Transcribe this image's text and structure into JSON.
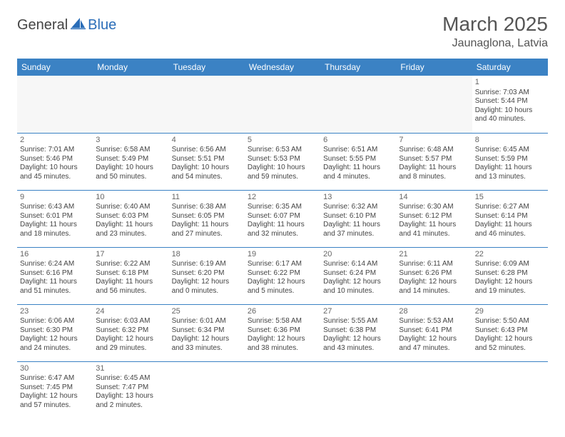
{
  "logo": {
    "general": "General",
    "blue": "Blue"
  },
  "title": "March 2025",
  "location": "Jaunaglona, Latvia",
  "colors": {
    "header_bg": "#3b82c4",
    "header_text": "#ffffff",
    "border": "#3b82c4",
    "empty_bg": "#f7f7f7",
    "text": "#444444",
    "logo_blue": "#2a6db8"
  },
  "typography": {
    "title_fontsize": 28,
    "location_fontsize": 16,
    "dayhead_fontsize": 12,
    "cell_fontsize": 10
  },
  "dayHeaders": [
    "Sunday",
    "Monday",
    "Tuesday",
    "Wednesday",
    "Thursday",
    "Friday",
    "Saturday"
  ],
  "weeks": [
    [
      null,
      null,
      null,
      null,
      null,
      null,
      {
        "n": "1",
        "sunrise": "Sunrise: 7:03 AM",
        "sunset": "Sunset: 5:44 PM",
        "daylight": "Daylight: 10 hours and 40 minutes."
      }
    ],
    [
      {
        "n": "2",
        "sunrise": "Sunrise: 7:01 AM",
        "sunset": "Sunset: 5:46 PM",
        "daylight": "Daylight: 10 hours and 45 minutes."
      },
      {
        "n": "3",
        "sunrise": "Sunrise: 6:58 AM",
        "sunset": "Sunset: 5:49 PM",
        "daylight": "Daylight: 10 hours and 50 minutes."
      },
      {
        "n": "4",
        "sunrise": "Sunrise: 6:56 AM",
        "sunset": "Sunset: 5:51 PM",
        "daylight": "Daylight: 10 hours and 54 minutes."
      },
      {
        "n": "5",
        "sunrise": "Sunrise: 6:53 AM",
        "sunset": "Sunset: 5:53 PM",
        "daylight": "Daylight: 10 hours and 59 minutes."
      },
      {
        "n": "6",
        "sunrise": "Sunrise: 6:51 AM",
        "sunset": "Sunset: 5:55 PM",
        "daylight": "Daylight: 11 hours and 4 minutes."
      },
      {
        "n": "7",
        "sunrise": "Sunrise: 6:48 AM",
        "sunset": "Sunset: 5:57 PM",
        "daylight": "Daylight: 11 hours and 8 minutes."
      },
      {
        "n": "8",
        "sunrise": "Sunrise: 6:45 AM",
        "sunset": "Sunset: 5:59 PM",
        "daylight": "Daylight: 11 hours and 13 minutes."
      }
    ],
    [
      {
        "n": "9",
        "sunrise": "Sunrise: 6:43 AM",
        "sunset": "Sunset: 6:01 PM",
        "daylight": "Daylight: 11 hours and 18 minutes."
      },
      {
        "n": "10",
        "sunrise": "Sunrise: 6:40 AM",
        "sunset": "Sunset: 6:03 PM",
        "daylight": "Daylight: 11 hours and 23 minutes."
      },
      {
        "n": "11",
        "sunrise": "Sunrise: 6:38 AM",
        "sunset": "Sunset: 6:05 PM",
        "daylight": "Daylight: 11 hours and 27 minutes."
      },
      {
        "n": "12",
        "sunrise": "Sunrise: 6:35 AM",
        "sunset": "Sunset: 6:07 PM",
        "daylight": "Daylight: 11 hours and 32 minutes."
      },
      {
        "n": "13",
        "sunrise": "Sunrise: 6:32 AM",
        "sunset": "Sunset: 6:10 PM",
        "daylight": "Daylight: 11 hours and 37 minutes."
      },
      {
        "n": "14",
        "sunrise": "Sunrise: 6:30 AM",
        "sunset": "Sunset: 6:12 PM",
        "daylight": "Daylight: 11 hours and 41 minutes."
      },
      {
        "n": "15",
        "sunrise": "Sunrise: 6:27 AM",
        "sunset": "Sunset: 6:14 PM",
        "daylight": "Daylight: 11 hours and 46 minutes."
      }
    ],
    [
      {
        "n": "16",
        "sunrise": "Sunrise: 6:24 AM",
        "sunset": "Sunset: 6:16 PM",
        "daylight": "Daylight: 11 hours and 51 minutes."
      },
      {
        "n": "17",
        "sunrise": "Sunrise: 6:22 AM",
        "sunset": "Sunset: 6:18 PM",
        "daylight": "Daylight: 11 hours and 56 minutes."
      },
      {
        "n": "18",
        "sunrise": "Sunrise: 6:19 AM",
        "sunset": "Sunset: 6:20 PM",
        "daylight": "Daylight: 12 hours and 0 minutes."
      },
      {
        "n": "19",
        "sunrise": "Sunrise: 6:17 AM",
        "sunset": "Sunset: 6:22 PM",
        "daylight": "Daylight: 12 hours and 5 minutes."
      },
      {
        "n": "20",
        "sunrise": "Sunrise: 6:14 AM",
        "sunset": "Sunset: 6:24 PM",
        "daylight": "Daylight: 12 hours and 10 minutes."
      },
      {
        "n": "21",
        "sunrise": "Sunrise: 6:11 AM",
        "sunset": "Sunset: 6:26 PM",
        "daylight": "Daylight: 12 hours and 14 minutes."
      },
      {
        "n": "22",
        "sunrise": "Sunrise: 6:09 AM",
        "sunset": "Sunset: 6:28 PM",
        "daylight": "Daylight: 12 hours and 19 minutes."
      }
    ],
    [
      {
        "n": "23",
        "sunrise": "Sunrise: 6:06 AM",
        "sunset": "Sunset: 6:30 PM",
        "daylight": "Daylight: 12 hours and 24 minutes."
      },
      {
        "n": "24",
        "sunrise": "Sunrise: 6:03 AM",
        "sunset": "Sunset: 6:32 PM",
        "daylight": "Daylight: 12 hours and 29 minutes."
      },
      {
        "n": "25",
        "sunrise": "Sunrise: 6:01 AM",
        "sunset": "Sunset: 6:34 PM",
        "daylight": "Daylight: 12 hours and 33 minutes."
      },
      {
        "n": "26",
        "sunrise": "Sunrise: 5:58 AM",
        "sunset": "Sunset: 6:36 PM",
        "daylight": "Daylight: 12 hours and 38 minutes."
      },
      {
        "n": "27",
        "sunrise": "Sunrise: 5:55 AM",
        "sunset": "Sunset: 6:38 PM",
        "daylight": "Daylight: 12 hours and 43 minutes."
      },
      {
        "n": "28",
        "sunrise": "Sunrise: 5:53 AM",
        "sunset": "Sunset: 6:41 PM",
        "daylight": "Daylight: 12 hours and 47 minutes."
      },
      {
        "n": "29",
        "sunrise": "Sunrise: 5:50 AM",
        "sunset": "Sunset: 6:43 PM",
        "daylight": "Daylight: 12 hours and 52 minutes."
      }
    ],
    [
      {
        "n": "30",
        "sunrise": "Sunrise: 6:47 AM",
        "sunset": "Sunset: 7:45 PM",
        "daylight": "Daylight: 12 hours and 57 minutes."
      },
      {
        "n": "31",
        "sunrise": "Sunrise: 6:45 AM",
        "sunset": "Sunset: 7:47 PM",
        "daylight": "Daylight: 13 hours and 2 minutes."
      },
      null,
      null,
      null,
      null,
      null
    ]
  ]
}
